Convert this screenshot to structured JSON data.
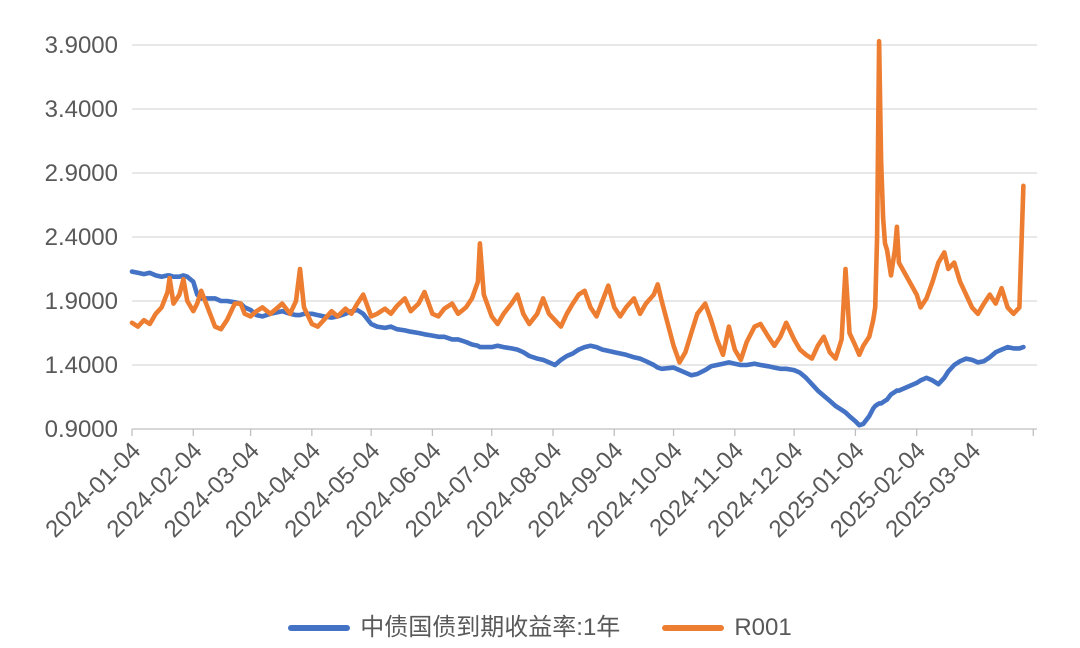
{
  "chart_data": {
    "type": "line",
    "title": "",
    "grid": "horizontal",
    "legend_position": "bottom",
    "x_axis": {
      "tick_labels": [
        "2024-01-04",
        "2024-02-04",
        "2024-03-04",
        "2024-04-04",
        "2024-05-04",
        "2024-06-04",
        "2024-07-04",
        "2024-08-04",
        "2024-09-04",
        "2024-10-04",
        "2024-11-04",
        "2024-12-04",
        "2025-01-04",
        "2025-02-04",
        "2025-03-04"
      ],
      "tick_days": [
        0,
        31,
        60,
        91,
        121,
        152,
        182,
        213,
        244,
        274,
        305,
        335,
        366,
        397,
        425
      ],
      "extra_unlabeled_tick_days": [
        456
      ],
      "label_rotation_deg": -45
    },
    "y_axis": {
      "tick_labels": [
        "0.9000",
        "1.4000",
        "1.9000",
        "2.4000",
        "2.9000",
        "3.4000",
        "3.9000"
      ],
      "min": 0.9,
      "max": 3.9,
      "step": 0.5
    },
    "days": [
      0,
      3,
      6,
      9,
      12,
      15,
      18,
      19,
      21,
      24,
      26,
      28,
      31,
      33,
      35,
      42,
      45,
      48,
      52,
      55,
      57,
      60,
      63,
      66,
      70,
      73,
      76,
      80,
      83,
      85,
      87,
      91,
      94,
      97,
      101,
      104,
      108,
      111,
      114,
      117,
      121,
      124,
      128,
      131,
      134,
      138,
      141,
      145,
      148,
      152,
      155,
      158,
      162,
      165,
      169,
      172,
      175,
      176,
      178,
      182,
      185,
      188,
      192,
      195,
      198,
      201,
      205,
      208,
      211,
      214,
      217,
      220,
      223,
      226,
      229,
      232,
      235,
      238,
      241,
      244,
      247,
      250,
      254,
      257,
      260,
      264,
      266,
      268,
      274,
      277,
      280,
      283,
      286,
      290,
      293,
      296,
      299,
      302,
      305,
      308,
      311,
      315,
      318,
      322,
      325,
      328,
      331,
      335,
      338,
      341,
      344,
      347,
      350,
      353,
      356,
      359,
      361,
      363,
      366,
      368,
      370,
      373,
      375,
      376,
      377,
      378,
      379,
      380,
      381,
      382,
      384,
      386,
      387,
      388,
      397,
      399,
      402,
      405,
      408,
      411,
      413,
      416,
      419,
      422,
      425,
      428,
      431,
      434,
      437,
      440,
      443,
      446,
      449,
      451
    ],
    "series": [
      {
        "name": "中债国债到期收益率:1年",
        "color": "#4472C4",
        "values": [
          2.13,
          2.12,
          2.11,
          2.12,
          2.1,
          2.09,
          2.1,
          2.1,
          2.09,
          2.09,
          2.1,
          2.09,
          2.05,
          1.95,
          1.92,
          1.92,
          1.9,
          1.9,
          1.89,
          1.88,
          1.85,
          1.83,
          1.79,
          1.78,
          1.8,
          1.81,
          1.82,
          1.8,
          1.79,
          1.79,
          1.8,
          1.8,
          1.79,
          1.78,
          1.77,
          1.78,
          1.8,
          1.82,
          1.83,
          1.8,
          1.72,
          1.7,
          1.69,
          1.7,
          1.68,
          1.67,
          1.66,
          1.65,
          1.64,
          1.63,
          1.62,
          1.62,
          1.6,
          1.6,
          1.58,
          1.56,
          1.55,
          1.54,
          1.54,
          1.54,
          1.55,
          1.54,
          1.53,
          1.52,
          1.5,
          1.47,
          1.45,
          1.44,
          1.42,
          1.4,
          1.44,
          1.47,
          1.49,
          1.52,
          1.54,
          1.55,
          1.54,
          1.52,
          1.51,
          1.5,
          1.49,
          1.48,
          1.46,
          1.45,
          1.43,
          1.4,
          1.38,
          1.37,
          1.38,
          1.36,
          1.34,
          1.32,
          1.33,
          1.36,
          1.39,
          1.4,
          1.41,
          1.42,
          1.41,
          1.4,
          1.4,
          1.41,
          1.4,
          1.39,
          1.38,
          1.37,
          1.37,
          1.36,
          1.34,
          1.3,
          1.25,
          1.2,
          1.16,
          1.12,
          1.08,
          1.05,
          1.03,
          1.0,
          0.96,
          0.93,
          0.94,
          1.0,
          1.06,
          1.08,
          1.09,
          1.1,
          1.1,
          1.11,
          1.12,
          1.13,
          1.17,
          1.19,
          1.2,
          1.2,
          1.26,
          1.28,
          1.3,
          1.28,
          1.25,
          1.3,
          1.35,
          1.4,
          1.43,
          1.45,
          1.44,
          1.42,
          1.43,
          1.46,
          1.5,
          1.52,
          1.54,
          1.53,
          1.53,
          1.54
        ]
      },
      {
        "name": "R001",
        "color": "#ED7D31",
        "values": [
          1.73,
          1.7,
          1.75,
          1.72,
          1.8,
          1.85,
          1.97,
          2.08,
          1.88,
          1.95,
          2.07,
          1.9,
          1.82,
          1.88,
          1.98,
          1.7,
          1.68,
          1.75,
          1.88,
          1.88,
          1.8,
          1.78,
          1.82,
          1.85,
          1.8,
          1.84,
          1.88,
          1.8,
          1.9,
          2.15,
          1.85,
          1.72,
          1.7,
          1.75,
          1.82,
          1.78,
          1.84,
          1.8,
          1.88,
          1.95,
          1.78,
          1.8,
          1.84,
          1.8,
          1.86,
          1.92,
          1.82,
          1.88,
          1.97,
          1.8,
          1.78,
          1.84,
          1.88,
          1.8,
          1.85,
          1.92,
          2.05,
          2.35,
          1.95,
          1.78,
          1.72,
          1.8,
          1.88,
          1.95,
          1.8,
          1.72,
          1.8,
          1.92,
          1.8,
          1.75,
          1.7,
          1.8,
          1.88,
          1.95,
          1.98,
          1.85,
          1.78,
          1.9,
          2.02,
          1.85,
          1.78,
          1.85,
          1.92,
          1.8,
          1.88,
          1.95,
          2.03,
          1.9,
          1.55,
          1.42,
          1.5,
          1.65,
          1.8,
          1.88,
          1.75,
          1.6,
          1.48,
          1.7,
          1.52,
          1.44,
          1.58,
          1.7,
          1.72,
          1.62,
          1.55,
          1.62,
          1.73,
          1.6,
          1.52,
          1.48,
          1.45,
          1.55,
          1.62,
          1.5,
          1.45,
          1.6,
          2.15,
          1.65,
          1.55,
          1.48,
          1.55,
          1.62,
          1.75,
          1.85,
          2.4,
          3.93,
          3.0,
          2.55,
          2.35,
          2.3,
          2.1,
          2.3,
          2.48,
          2.2,
          1.95,
          1.85,
          1.92,
          2.05,
          2.2,
          2.28,
          2.15,
          2.2,
          2.05,
          1.95,
          1.85,
          1.8,
          1.88,
          1.95,
          1.88,
          2.0,
          1.85,
          1.8,
          1.85,
          2.8
        ]
      }
    ]
  },
  "colors": {
    "grid": "#D9D9D9",
    "axis": "#BFBFBF",
    "tick_text": "#595959",
    "background": "#FFFFFF"
  }
}
